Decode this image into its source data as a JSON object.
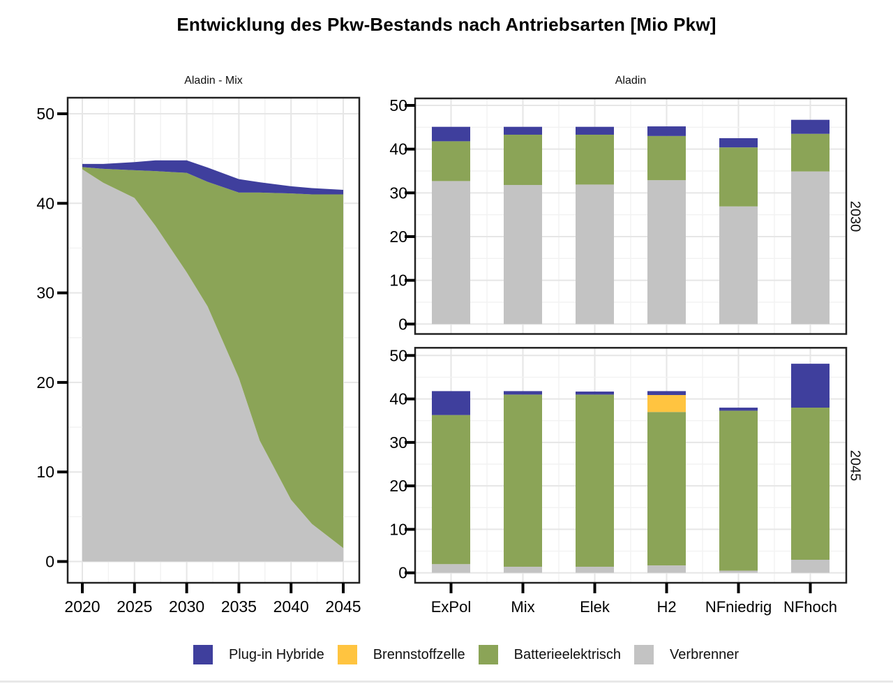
{
  "title": "Entwicklung des Pkw-Bestands nach Antriebsarten [Mio Pkw]",
  "colors": {
    "plugin_hybride": "#3F3F9D",
    "brennstoffzelle": "#FFC440",
    "batterieelektrisch": "#8BA457",
    "verbrenner": "#C3C3C3",
    "panel_border": "#222222",
    "grid_major": "#E6E6E6",
    "grid_minor": "#F2F2F2"
  },
  "legend": {
    "items": [
      {
        "label": "Plug-in Hybride",
        "color": "plugin_hybride"
      },
      {
        "label": "Brennstoffzelle",
        "color": "brennstoffzelle"
      },
      {
        "label": "Batterieelektrisch",
        "color": "batterieelektrisch"
      },
      {
        "label": "Verbrenner",
        "color": "verbrenner"
      }
    ]
  },
  "chart_data": [
    {
      "id": "area-mix",
      "type": "area",
      "title": "Aladin - Mix",
      "xlabel": "",
      "ylabel": "",
      "x": [
        2020,
        2022,
        2025,
        2027,
        2030,
        2032,
        2035,
        2037,
        2040,
        2042,
        2045
      ],
      "series": [
        {
          "name": "Verbrenner",
          "color": "verbrenner",
          "values": [
            43.8,
            42.3,
            40.6,
            37.5,
            32.3,
            28.5,
            20.5,
            13.5,
            6.9,
            4.2,
            1.5
          ]
        },
        {
          "name": "Batterieelektrisch",
          "color": "batterieelektrisch",
          "values": [
            0.25,
            1.55,
            3.1,
            6.1,
            11.1,
            13.9,
            20.7,
            27.7,
            34.2,
            36.8,
            39.5
          ]
        },
        {
          "name": "Plug-in Hybride",
          "color": "plugin_hybride",
          "values": [
            0.35,
            0.55,
            0.9,
            1.2,
            1.4,
            1.6,
            1.5,
            1.15,
            0.8,
            0.7,
            0.5
          ]
        }
      ],
      "x_ticks": [
        2020,
        2025,
        2030,
        2035,
        2040,
        2045
      ],
      "y_ticks": [
        0,
        10,
        20,
        30,
        40,
        50
      ],
      "ylim": [
        0,
        50
      ],
      "grid": true,
      "legend_position": "bottom"
    },
    {
      "id": "bars-2030",
      "type": "bar",
      "title": "Aladin",
      "facet_label": "2030",
      "categories": [
        "ExPol",
        "Mix",
        "Elek",
        "H2",
        "NFniedrig",
        "NFhoch"
      ],
      "series": [
        {
          "name": "Verbrenner",
          "color": "verbrenner",
          "values": [
            32.7,
            31.8,
            31.9,
            32.9,
            26.9,
            34.9
          ]
        },
        {
          "name": "Batterieelektrisch",
          "color": "batterieelektrisch",
          "values": [
            9.1,
            11.5,
            11.4,
            10.1,
            13.5,
            8.6
          ]
        },
        {
          "name": "Brennstoffzelle",
          "color": "brennstoffzelle",
          "values": [
            0,
            0,
            0,
            0,
            0,
            0
          ]
        },
        {
          "name": "Plug-in Hybride",
          "color": "plugin_hybride",
          "values": [
            3.3,
            1.8,
            1.8,
            2.2,
            2.1,
            3.2
          ]
        }
      ],
      "y_ticks": [
        0,
        10,
        20,
        30,
        40,
        50
      ],
      "ylim": [
        0,
        50
      ],
      "grid": true
    },
    {
      "id": "bars-2045",
      "type": "bar",
      "title": "Aladin",
      "facet_label": "2045",
      "categories": [
        "ExPol",
        "Mix",
        "Elek",
        "H2",
        "NFniedrig",
        "NFhoch"
      ],
      "series": [
        {
          "name": "Verbrenner",
          "color": "verbrenner",
          "values": [
            2.0,
            1.4,
            1.4,
            1.7,
            0.5,
            3.0
          ]
        },
        {
          "name": "Batterieelektrisch",
          "color": "batterieelektrisch",
          "values": [
            34.3,
            39.6,
            39.6,
            35.3,
            36.8,
            35.0
          ]
        },
        {
          "name": "Brennstoffzelle",
          "color": "brennstoffzelle",
          "values": [
            0,
            0,
            0,
            3.9,
            0,
            0
          ]
        },
        {
          "name": "Plug-in Hybride",
          "color": "plugin_hybride",
          "values": [
            5.5,
            0.8,
            0.7,
            0.9,
            0.7,
            10.1
          ]
        }
      ],
      "y_ticks": [
        0,
        10,
        20,
        30,
        40,
        50
      ],
      "ylim": [
        0,
        50
      ],
      "grid": true
    }
  ]
}
